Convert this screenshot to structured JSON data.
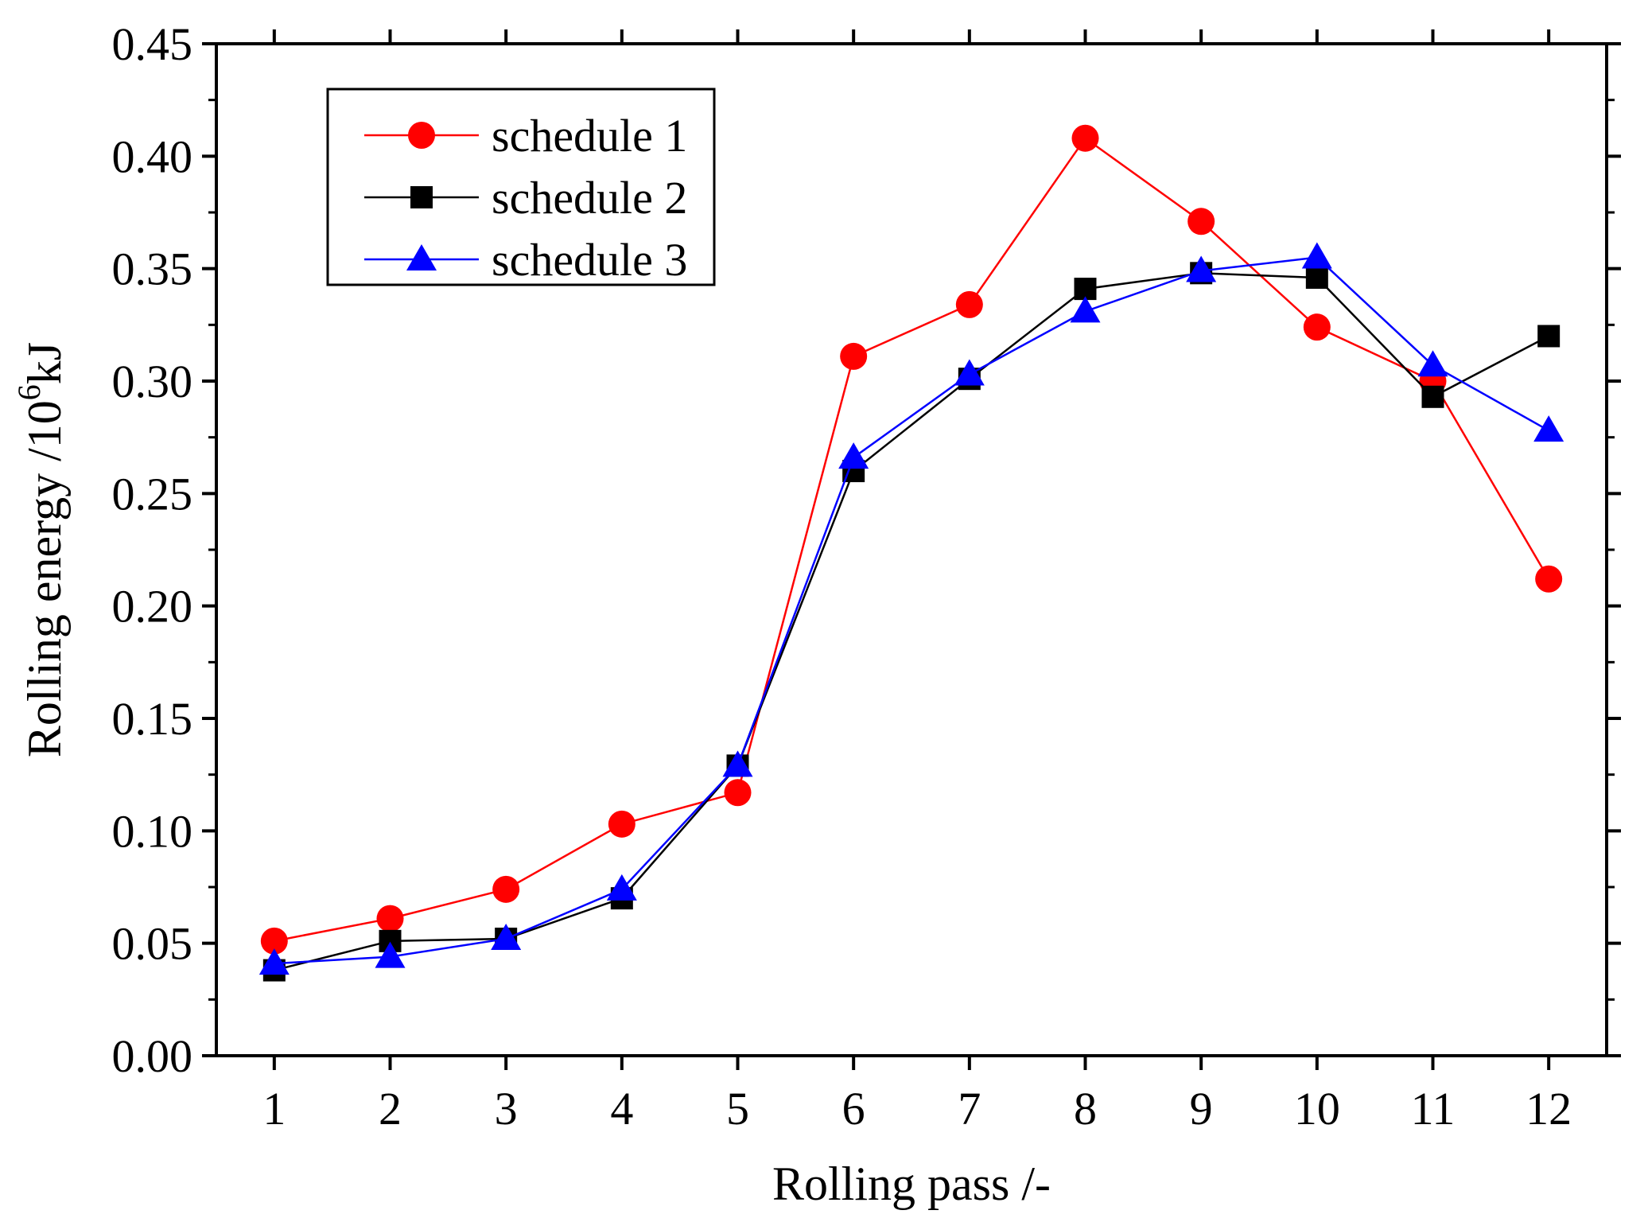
{
  "chart_data": {
    "type": "line",
    "title": "",
    "xlabel": "Rolling pass /-",
    "ylabel_main": "Rolling energy /10",
    "ylabel_sup": "6",
    "ylabel_unit": "kJ",
    "categories": [
      "1",
      "2",
      "3",
      "4",
      "5",
      "6",
      "7",
      "8",
      "9",
      "10",
      "11",
      "12"
    ],
    "x": [
      1,
      2,
      3,
      4,
      5,
      6,
      7,
      8,
      9,
      10,
      11,
      12
    ],
    "xlim": [
      0.5,
      12.5
    ],
    "ylim": [
      0,
      0.45
    ],
    "yticks": [
      "0.00",
      "0.05",
      "0.10",
      "0.15",
      "0.20",
      "0.25",
      "0.30",
      "0.35",
      "0.40",
      "0.45"
    ],
    "ytick_values": [
      0,
      0.05,
      0.1,
      0.15,
      0.2,
      0.25,
      0.3,
      0.35,
      0.4,
      0.45
    ],
    "grid": false,
    "legend_position": "top-left",
    "series": [
      {
        "name": "schedule 1",
        "color": "#ff0000",
        "marker": "circle",
        "values": [
          0.051,
          0.061,
          0.074,
          0.103,
          0.117,
          0.311,
          0.334,
          0.408,
          0.371,
          0.324,
          0.3,
          0.212
        ]
      },
      {
        "name": "schedule 2",
        "color": "#000000",
        "marker": "square",
        "values": [
          0.038,
          0.051,
          0.052,
          0.07,
          0.129,
          0.26,
          0.301,
          0.341,
          0.348,
          0.346,
          0.293,
          0.32
        ]
      },
      {
        "name": "schedule 3",
        "color": "#0000ff",
        "marker": "triangle",
        "values": [
          0.041,
          0.044,
          0.052,
          0.074,
          0.129,
          0.266,
          0.303,
          0.331,
          0.349,
          0.355,
          0.307,
          0.278
        ]
      }
    ]
  }
}
